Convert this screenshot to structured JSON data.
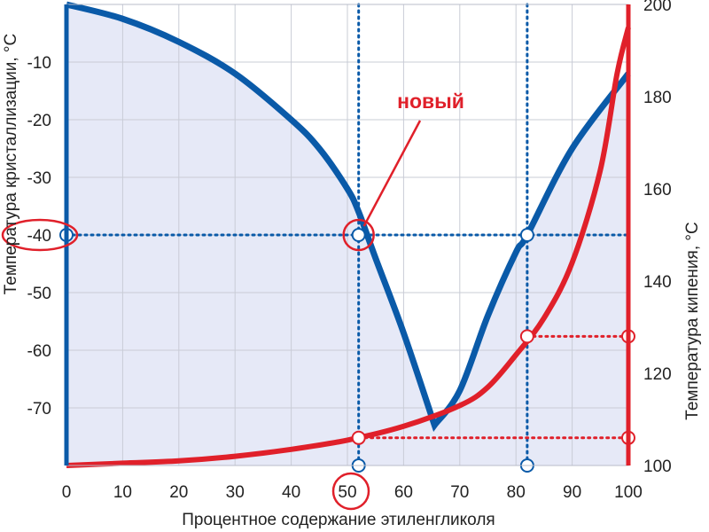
{
  "chart_data": {
    "type": "line",
    "title": "",
    "xlabel": "Процентное содержание этиленгликоля",
    "ylabel_left": "Температура кристаллизации, °C",
    "ylabel_right": "Температура кипения, °C",
    "xlim": [
      0,
      100
    ],
    "ylim_left": [
      -80,
      0
    ],
    "ylim_right": [
      100,
      200
    ],
    "x_ticks": [
      "0",
      "10",
      "20",
      "30",
      "40",
      "50",
      "60",
      "70",
      "80",
      "90",
      "100"
    ],
    "y_ticks_left": [
      "-10",
      "-20",
      "-30",
      "-40",
      "-50",
      "-60",
      "-70"
    ],
    "y_ticks_right": [
      "100",
      "120",
      "140",
      "160",
      "180",
      "200"
    ],
    "grid": true,
    "series": [
      {
        "axis": "left",
        "color": "#0a5aa8",
        "x": [
          0,
          10,
          20,
          30,
          40,
          45,
          50,
          52,
          55,
          60,
          65.5,
          70,
          75,
          80,
          82,
          90,
          100
        ],
        "y": [
          0,
          -2.5,
          -6.5,
          -12,
          -20,
          -25,
          -32,
          -36,
          -44,
          -57,
          -73,
          -67,
          -54,
          -43,
          -40,
          -25,
          -12
        ]
      },
      {
        "axis": "right",
        "color": "#e0202a",
        "x": [
          0,
          10,
          20,
          30,
          40,
          50,
          60,
          70,
          75,
          80,
          85,
          90,
          95,
          98,
          100
        ],
        "y": [
          100,
          100.5,
          101,
          102,
          103.5,
          105.5,
          108.5,
          113,
          117,
          124,
          132,
          144,
          164,
          185,
          195
        ]
      }
    ],
    "reference_lines": [
      {
        "axis": "left",
        "y": -40,
        "x_from": 0,
        "x_to": 100
      },
      {
        "axis": "x",
        "x": 52,
        "y_from": -80,
        "y_to": 0
      },
      {
        "axis": "x",
        "x": 82,
        "y_from": -80,
        "y_to": 0
      },
      {
        "axis": "right",
        "y": 128,
        "x_from": 82,
        "x_to": 100
      },
      {
        "axis": "right",
        "y": 106,
        "x_from": 52,
        "x_to": 100
      }
    ],
    "markers": [
      {
        "axis": "left",
        "x": 0,
        "y": -40
      },
      {
        "axis": "left",
        "x": 52,
        "y": -40
      },
      {
        "axis": "left",
        "x": 82,
        "y": -40
      },
      {
        "axis": "left",
        "x": 52,
        "y": -80
      },
      {
        "axis": "left",
        "x": 82,
        "y": -80
      },
      {
        "axis": "right",
        "x": 82,
        "y": 128
      },
      {
        "axis": "right",
        "x": 100,
        "y": 128
      },
      {
        "axis": "right",
        "x": 52,
        "y": 106
      },
      {
        "axis": "right",
        "x": 100,
        "y": 106
      }
    ],
    "highlights": [
      {
        "axis": "left",
        "x": 0,
        "y": -40
      },
      {
        "axis": "left",
        "x": 52,
        "y": -40
      },
      {
        "axis": "x-tick",
        "value": "50"
      }
    ],
    "annotation": {
      "text": "новый",
      "points_to": {
        "x": 52,
        "y": -40
      }
    }
  }
}
